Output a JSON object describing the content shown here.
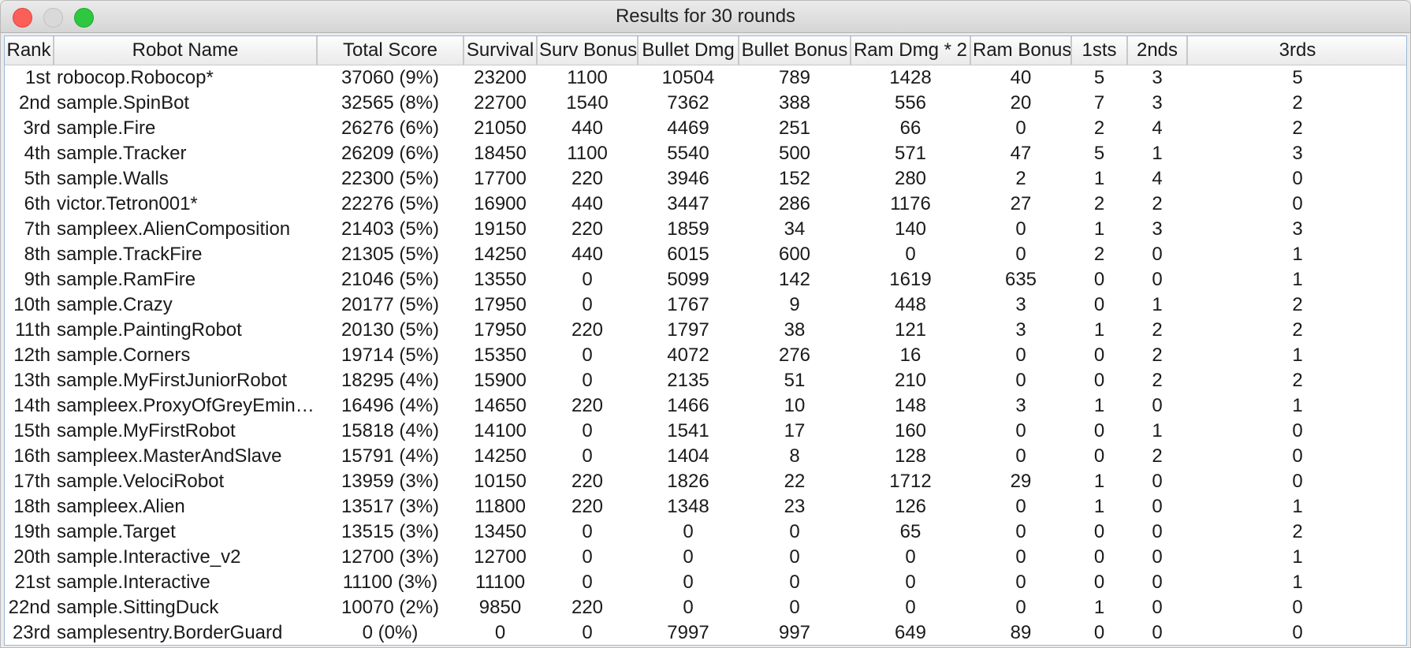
{
  "window": {
    "title": "Results for 30 rounds"
  },
  "table": {
    "columns": [
      "Rank",
      "Robot Name",
      "Total Score",
      "Survival",
      "Surv Bonus",
      "Bullet Dmg",
      "Bullet Bonus",
      "Ram Dmg * 2",
      "Ram Bonus",
      "1sts",
      "2nds",
      "3rds"
    ],
    "rows": [
      [
        "1st",
        "robocop.Robocop*",
        "37060 (9%)",
        "23200",
        "1100",
        "10504",
        "789",
        "1428",
        "40",
        "5",
        "3",
        "5"
      ],
      [
        "2nd",
        "sample.SpinBot",
        "32565 (8%)",
        "22700",
        "1540",
        "7362",
        "388",
        "556",
        "20",
        "7",
        "3",
        "2"
      ],
      [
        "3rd",
        "sample.Fire",
        "26276 (6%)",
        "21050",
        "440",
        "4469",
        "251",
        "66",
        "0",
        "2",
        "4",
        "2"
      ],
      [
        "4th",
        "sample.Tracker",
        "26209 (6%)",
        "18450",
        "1100",
        "5540",
        "500",
        "571",
        "47",
        "5",
        "1",
        "3"
      ],
      [
        "5th",
        "sample.Walls",
        "22300 (5%)",
        "17700",
        "220",
        "3946",
        "152",
        "280",
        "2",
        "1",
        "4",
        "0"
      ],
      [
        "6th",
        "victor.Tetron001*",
        "22276 (5%)",
        "16900",
        "440",
        "3447",
        "286",
        "1176",
        "27",
        "2",
        "2",
        "0"
      ],
      [
        "7th",
        "sampleex.AlienComposition",
        "21403 (5%)",
        "19150",
        "220",
        "1859",
        "34",
        "140",
        "0",
        "1",
        "3",
        "3"
      ],
      [
        "8th",
        "sample.TrackFire",
        "21305 (5%)",
        "14250",
        "440",
        "6015",
        "600",
        "0",
        "0",
        "2",
        "0",
        "1"
      ],
      [
        "9th",
        "sample.RamFire",
        "21046 (5%)",
        "13550",
        "0",
        "5099",
        "142",
        "1619",
        "635",
        "0",
        "0",
        "1"
      ],
      [
        "10th",
        "sample.Crazy",
        "20177 (5%)",
        "17950",
        "0",
        "1767",
        "9",
        "448",
        "3",
        "0",
        "1",
        "2"
      ],
      [
        "11th",
        "sample.PaintingRobot",
        "20130 (5%)",
        "17950",
        "220",
        "1797",
        "38",
        "121",
        "3",
        "1",
        "2",
        "2"
      ],
      [
        "12th",
        "sample.Corners",
        "19714 (5%)",
        "15350",
        "0",
        "4072",
        "276",
        "16",
        "0",
        "0",
        "2",
        "1"
      ],
      [
        "13th",
        "sample.MyFirstJuniorRobot",
        "18295 (4%)",
        "15900",
        "0",
        "2135",
        "51",
        "210",
        "0",
        "0",
        "2",
        "2"
      ],
      [
        "14th",
        "sampleex.ProxyOfGreyEminen...",
        "16496 (4%)",
        "14650",
        "220",
        "1466",
        "10",
        "148",
        "3",
        "1",
        "0",
        "1"
      ],
      [
        "15th",
        "sample.MyFirstRobot",
        "15818 (4%)",
        "14100",
        "0",
        "1541",
        "17",
        "160",
        "0",
        "0",
        "1",
        "0"
      ],
      [
        "16th",
        "sampleex.MasterAndSlave",
        "15791 (4%)",
        "14250",
        "0",
        "1404",
        "8",
        "128",
        "0",
        "0",
        "2",
        "0"
      ],
      [
        "17th",
        "sample.VelociRobot",
        "13959 (3%)",
        "10150",
        "220",
        "1826",
        "22",
        "1712",
        "29",
        "1",
        "0",
        "0"
      ],
      [
        "18th",
        "sampleex.Alien",
        "13517 (3%)",
        "11800",
        "220",
        "1348",
        "23",
        "126",
        "0",
        "1",
        "0",
        "1"
      ],
      [
        "19th",
        "sample.Target",
        "13515 (3%)",
        "13450",
        "0",
        "0",
        "0",
        "65",
        "0",
        "0",
        "0",
        "2"
      ],
      [
        "20th",
        "sample.Interactive_v2",
        "12700 (3%)",
        "12700",
        "0",
        "0",
        "0",
        "0",
        "0",
        "0",
        "0",
        "1"
      ],
      [
        "21st",
        "sample.Interactive",
        "11100 (3%)",
        "11100",
        "0",
        "0",
        "0",
        "0",
        "0",
        "0",
        "0",
        "1"
      ],
      [
        "22nd",
        "sample.SittingDuck",
        "10070 (2%)",
        "9850",
        "220",
        "0",
        "0",
        "0",
        "0",
        "1",
        "0",
        "0"
      ],
      [
        "23rd",
        "samplesentry.BorderGuard",
        "0 (0%)",
        "0",
        "0",
        "7997",
        "997",
        "649",
        "89",
        "0",
        "0",
        "0"
      ]
    ]
  }
}
